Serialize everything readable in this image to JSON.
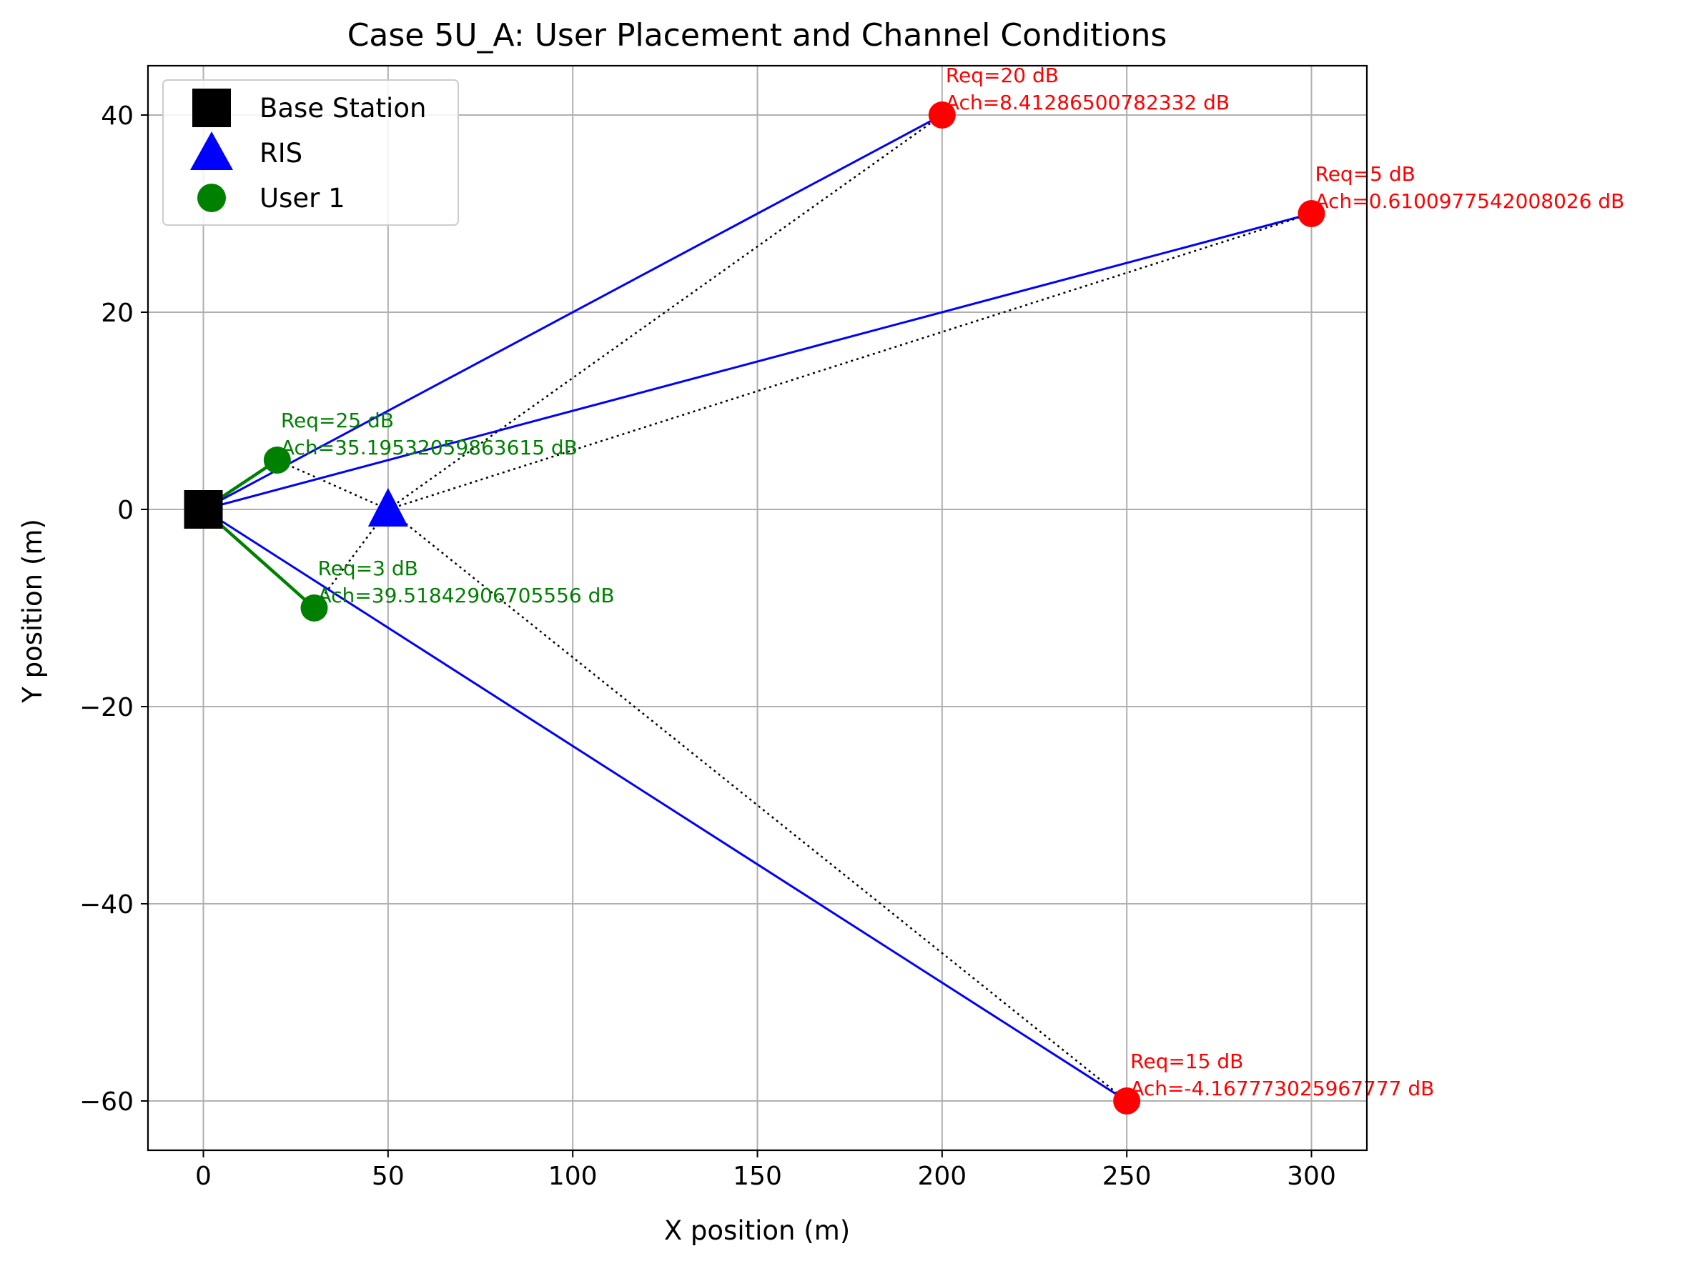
{
  "chart_data": {
    "type": "scatter",
    "title": "Case 5U_A: User Placement and Channel Conditions",
    "xlabel": "X position (m)",
    "ylabel": "Y position (m)",
    "xlim": [
      -15,
      315
    ],
    "ylim": [
      -65,
      45
    ],
    "xticks": [
      0,
      50,
      100,
      150,
      200,
      250,
      300
    ],
    "yticks": [
      -60,
      -40,
      -20,
      0,
      20,
      40
    ],
    "xtick_labels": [
      "0",
      "50",
      "100",
      "150",
      "200",
      "250",
      "300"
    ],
    "ytick_labels": [
      "−60",
      "−40",
      "−20",
      "0",
      "20",
      "40"
    ],
    "grid": true,
    "legend": {
      "placement": "upper-left",
      "entries": [
        {
          "label": "Base Station",
          "marker": "square",
          "color": "#000000"
        },
        {
          "label": "RIS",
          "marker": "triangle",
          "color": "#0000ff"
        },
        {
          "label": "User 1",
          "marker": "circle",
          "color": "#008000"
        }
      ]
    },
    "base_station": {
      "x": 0,
      "y": 0,
      "color": "#000000"
    },
    "ris": {
      "x": 50,
      "y": 0,
      "color": "#0000ff"
    },
    "users": [
      {
        "x": 20,
        "y": 5,
        "color": "#008000",
        "req": "Req=25 dB",
        "ach": "Ach=35.19532059863615 dB"
      },
      {
        "x": 30,
        "y": -10,
        "color": "#008000",
        "req": "Req=3 dB",
        "ach": "Ach=39.51842906705556 dB"
      },
      {
        "x": 200,
        "y": 40,
        "color": "#ff0000",
        "req": "Req=20 dB",
        "ach": "Ach=8.41286500782332 dB"
      },
      {
        "x": 300,
        "y": 30,
        "color": "#ff0000",
        "req": "Req=5 dB",
        "ach": "Ach=0.6100977542008026 dB"
      },
      {
        "x": 250,
        "y": -60,
        "color": "#ff0000",
        "req": "Req=15 dB",
        "ach": "Ach=-4.167773025967777 dB"
      }
    ]
  }
}
